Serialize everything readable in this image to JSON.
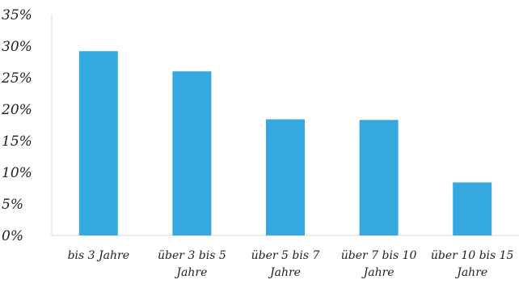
{
  "chart_data": {
    "type": "bar",
    "categories": [
      [
        "bis 3 Jahre"
      ],
      [
        "über 3 bis 5",
        "Jahre"
      ],
      [
        "über 5 bis 7",
        "Jahre"
      ],
      [
        "über 7 bis 10",
        "Jahre"
      ],
      [
        "über 10 bis 15",
        "Jahre"
      ]
    ],
    "values": [
      29.2,
      26.0,
      18.4,
      18.3,
      8.4
    ],
    "ylim": [
      0,
      35
    ],
    "yticks": [
      "0%",
      "5%",
      "10%",
      "15%",
      "20%",
      "25%",
      "30%",
      "35%"
    ],
    "grid": false,
    "bar_color": "#35a8e0",
    "axis_color": "#d9d9d9"
  }
}
